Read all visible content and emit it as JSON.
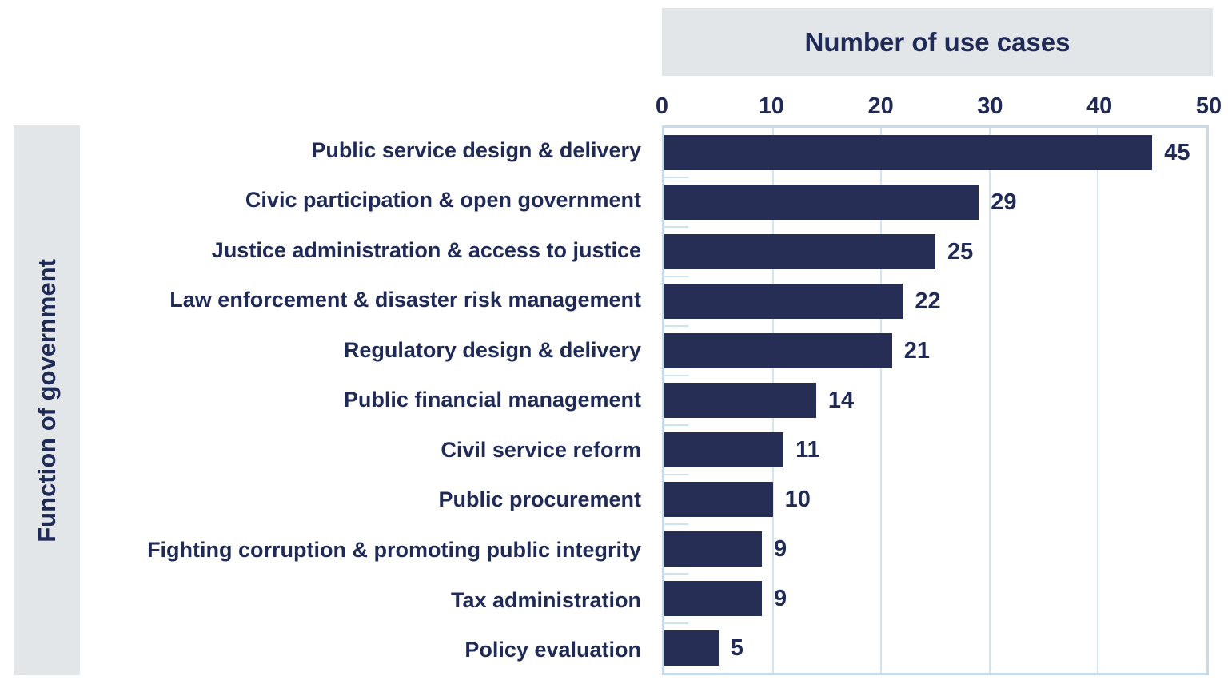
{
  "header": {
    "title": "Number of use cases"
  },
  "chart_data": {
    "type": "bar",
    "orientation": "horizontal",
    "title": "Number of use cases",
    "xlabel": "Number of use cases",
    "ylabel": "Function of government",
    "categories": [
      "Public service design & delivery",
      "Civic participation & open government",
      "Justice administration & access to justice",
      "Law enforcement & disaster risk management",
      "Regulatory design & delivery",
      "Public financial management",
      "Civil service reform",
      "Public procurement",
      "Fighting corruption & promoting public integrity",
      "Tax administration",
      "Policy evaluation"
    ],
    "values": [
      45,
      29,
      25,
      22,
      21,
      14,
      11,
      10,
      9,
      9,
      5
    ],
    "xlim": [
      0,
      50
    ],
    "x_ticks": [
      0,
      10,
      20,
      30,
      40,
      50
    ],
    "grid": "vertical",
    "legend": "none",
    "colors": {
      "bar": "#272e55",
      "text": "#1f2a56",
      "panel_background": "#e2e6e9",
      "plot_border": "#c5dbeb",
      "gridline": "#d6e4f1"
    }
  }
}
